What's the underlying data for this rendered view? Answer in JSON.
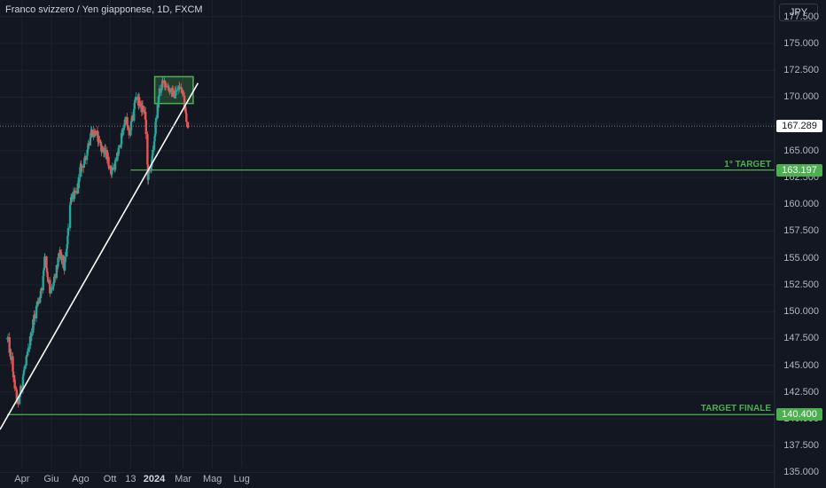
{
  "header": {
    "title": "Franco svizzero / Yen giapponese, 1D, FXCM"
  },
  "currency_button": {
    "label": "JPY"
  },
  "colors": {
    "background": "#131722",
    "grid": "#1e222d",
    "up": "#26a69a",
    "down": "#ef5350",
    "target_line": "#4caf50",
    "trendline": "#ffffff",
    "zone_border": "#4caf50",
    "zone_fill": "rgba(76,175,80,0.25)",
    "current_badge_bg": "#ffffff",
    "current_badge_text": "#131722",
    "target_badge_bg": "#4caf50",
    "target_badge_text": "#ffffff"
  },
  "chart_data": {
    "type": "candlestick",
    "title": "Franco svizzero / Yen giapponese, 1D, FXCM",
    "y_axis": {
      "side": "right",
      "range": [
        133.8,
        178.8
      ],
      "ticks": [
        "135.000",
        "137.500",
        "140.000",
        "142.500",
        "145.000",
        "147.500",
        "150.000",
        "152.500",
        "155.000",
        "157.500",
        "160.000",
        "162.500",
        "165.000",
        "167.500",
        "170.000",
        "172.500",
        "175.000",
        "177.500"
      ]
    },
    "x_axis": {
      "ticks": [
        {
          "label": "Apr",
          "date": "2023-04-01",
          "bold": false
        },
        {
          "label": "Giu",
          "date": "2023-06-01",
          "bold": false
        },
        {
          "label": "Ago",
          "date": "2023-08-01",
          "bold": false
        },
        {
          "label": "Ott",
          "date": "2023-10-01",
          "bold": false
        },
        {
          "label": "13",
          "date": "2023-11-13",
          "bold": false
        },
        {
          "label": "2024",
          "date": "2024-01-01",
          "bold": true
        },
        {
          "label": "Mar",
          "date": "2024-03-01",
          "bold": false
        },
        {
          "label": "Mag",
          "date": "2024-05-01",
          "bold": false
        },
        {
          "label": "Lug",
          "date": "2024-07-01",
          "bold": false
        }
      ]
    },
    "price_path": [
      [
        "2023-03-02",
        147.4
      ],
      [
        "2023-03-10",
        145.5
      ],
      [
        "2023-03-17",
        143.0
      ],
      [
        "2023-03-24",
        141.3
      ],
      [
        "2023-04-03",
        144.0
      ],
      [
        "2023-04-13",
        146.0
      ],
      [
        "2023-04-24",
        149.0
      ],
      [
        "2023-05-03",
        150.8
      ],
      [
        "2023-05-12",
        152.0
      ],
      [
        "2023-05-19",
        155.4
      ],
      [
        "2023-05-29",
        151.5
      ],
      [
        "2023-06-08",
        153.0
      ],
      [
        "2023-06-19",
        155.5
      ],
      [
        "2023-06-28",
        154.0
      ],
      [
        "2023-07-04",
        156.5
      ],
      [
        "2023-07-11",
        160.5
      ],
      [
        "2023-07-24",
        161.0
      ],
      [
        "2023-07-31",
        163.2
      ],
      [
        "2023-08-10",
        164.0
      ],
      [
        "2023-08-22",
        166.8
      ],
      [
        "2023-09-04",
        166.5
      ],
      [
        "2023-09-14",
        165.2
      ],
      [
        "2023-09-25",
        164.5
      ],
      [
        "2023-10-03",
        163.0
      ],
      [
        "2023-10-13",
        163.8
      ],
      [
        "2023-10-24",
        166.0
      ],
      [
        "2023-11-02",
        168.0
      ],
      [
        "2023-11-10",
        166.5
      ],
      [
        "2023-11-16",
        167.8
      ],
      [
        "2023-11-24",
        170.2
      ],
      [
        "2023-12-05",
        169.0
      ],
      [
        "2023-12-13",
        168.5
      ],
      [
        "2023-12-19",
        162.6
      ],
      [
        "2023-12-27",
        163.8
      ],
      [
        "2024-01-05",
        167.8
      ],
      [
        "2024-01-12",
        170.6
      ],
      [
        "2024-01-22",
        171.4
      ],
      [
        "2024-02-01",
        170.8
      ],
      [
        "2024-02-12",
        170.2
      ],
      [
        "2024-02-22",
        170.9
      ],
      [
        "2024-03-01",
        170.6
      ],
      [
        "2024-03-06",
        168.5
      ],
      [
        "2024-03-11",
        167.3
      ]
    ],
    "current_price": {
      "value": 167.289,
      "label": "167.289"
    },
    "horizontal_lines": [
      {
        "name": "1° TARGET",
        "value": 163.197,
        "label": "163.197",
        "annotation": "1° TARGET",
        "from": "2023-11-13"
      },
      {
        "name": "TARGET FINALE",
        "value": 140.4,
        "label": "140.400",
        "annotation": "TARGET FINALE",
        "from": "2023-03-01"
      }
    ],
    "trendline": {
      "from": [
        "2023-03-01",
        139.0
      ],
      "to": [
        "2024-04-01",
        171.3
      ]
    },
    "consolidation_zone": {
      "from": "2024-01-02",
      "to": "2024-03-22",
      "low": 169.4,
      "high": 171.9
    }
  }
}
